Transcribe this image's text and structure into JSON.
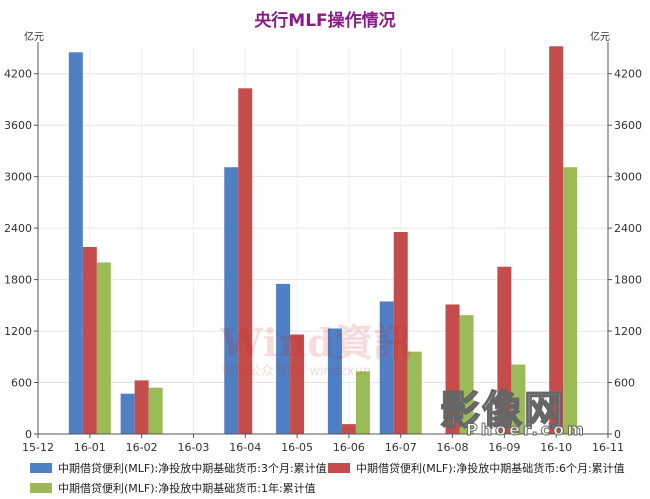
{
  "chart_data": {
    "type": "bar",
    "title": "央行MLF操作情况",
    "unit_left": "亿元",
    "unit_right": "亿元",
    "x_ticks": [
      "15-12",
      "16-01",
      "16-02",
      "16-03",
      "16-04",
      "16-05",
      "16-06",
      "16-07",
      "16-08",
      "16-09",
      "16-10",
      "16-11"
    ],
    "categories": [
      "16-01",
      "16-02",
      "16-03",
      "16-04",
      "16-05",
      "16-06",
      "16-07",
      "16-08",
      "16-09",
      "16-10"
    ],
    "yticks": [
      0,
      600,
      1200,
      1800,
      2400,
      3000,
      3600,
      4200
    ],
    "ylim": [
      0,
      4500
    ],
    "grid": true,
    "legend_position": "bottom",
    "series": [
      {
        "name": "中期借贷便利(MLF):净投放中期基础货币:3个月:累计值",
        "color": "#4F7FC4",
        "values": [
          4450,
          470,
          0,
          3110,
          1750,
          1230,
          1545,
          0,
          0,
          0
        ]
      },
      {
        "name": "中期借贷便利(MLF):净投放中期基础货币:6个月:累计值",
        "color": "#C44C4A",
        "values": [
          2180,
          625,
          0,
          4030,
          1160,
          115,
          2355,
          1510,
          1950,
          4520
        ]
      },
      {
        "name": "中期借贷便利(MLF):净投放中期基础货币:1年:累计值",
        "color": "#9BBB59",
        "values": [
          2000,
          540,
          0,
          0,
          0,
          730,
          960,
          1385,
          810,
          3110
        ]
      }
    ]
  },
  "watermark": {
    "main": "Wind資訊",
    "sub": "微信公众号ID: windzxun"
  },
  "logo": {
    "main": "影像网",
    "sub": "Phoer.com"
  }
}
